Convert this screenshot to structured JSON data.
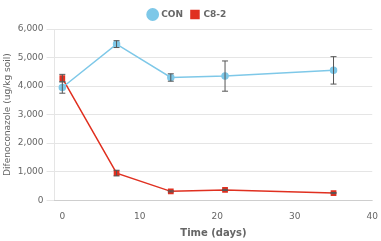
{
  "chart_data": {
    "type": "line",
    "x": [
      0,
      7,
      14,
      21,
      35
    ],
    "series": [
      {
        "name": "CON",
        "color": "#7ec8e8",
        "marker": "circle",
        "values": [
          3950,
          5470,
          4300,
          4350,
          4550
        ],
        "errors": [
          200,
          120,
          130,
          530,
          480
        ]
      },
      {
        "name": "C8-2",
        "color": "#e03020",
        "marker": "square",
        "values": [
          4280,
          950,
          310,
          360,
          250
        ],
        "errors": [
          130,
          100,
          20,
          20,
          20
        ]
      }
    ],
    "xlabel": "Time (days)",
    "ylabel": "Difenoconazole (ug/kg soil)",
    "xlim": [
      -1,
      40
    ],
    "xticks": [
      0,
      10,
      20,
      30,
      40
    ],
    "ylim": [
      0,
      6000
    ],
    "yticks": [
      0,
      {
        "value": 1000,
        "label": "1,000"
      },
      {
        "value": 2000,
        "label": "2,000"
      },
      {
        "value": 3000,
        "label": "3,000"
      },
      {
        "value": 4000,
        "label": "4,000"
      },
      {
        "value": 5000,
        "label": "5,000"
      },
      {
        "value": 6000,
        "label": "6,000"
      }
    ],
    "grid": true
  }
}
